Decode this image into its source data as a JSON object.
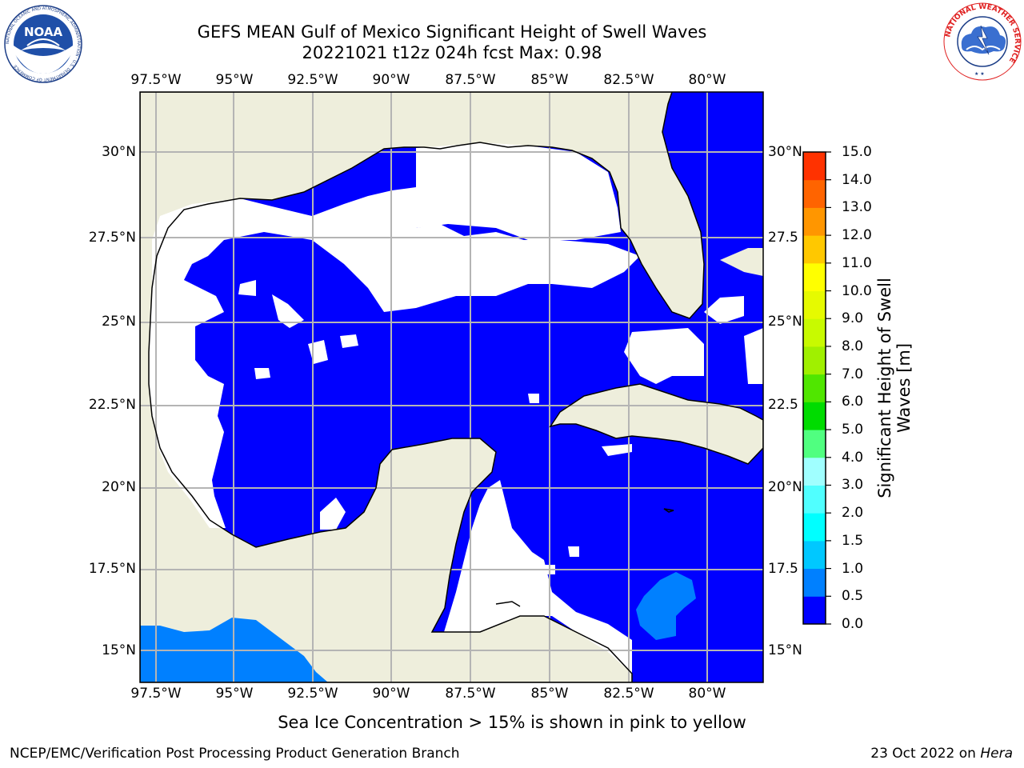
{
  "title": {
    "line1": "GEFS MEAN Gulf of Mexico Significant Height of Swell Waves",
    "line2": "20221021 t12z 024h fcst   Max: 0.98"
  },
  "map": {
    "lon_labels": [
      "97.5°W",
      "95°W",
      "92.5°W",
      "90°W",
      "87.5°W",
      "85°W",
      "82.5°W",
      "80°W"
    ],
    "lat_labels": [
      "30°N",
      "27.5°N",
      "25°N",
      "22.5°N",
      "20°N",
      "17.5°N",
      "15°N"
    ],
    "lat_labels_right": [
      "30°N",
      "27.5",
      "25°N",
      "22.5",
      "20°N",
      "17.5",
      "15°N"
    ],
    "extent": {
      "lon": [
        -98,
        -79
      ],
      "lat": [
        14,
        32
      ]
    },
    "colors": {
      "land": "#eeeedc",
      "no_data": "#ffffff",
      "swell_0_0.5": "#0000ff",
      "swell_0.5_1.0": "#0080ff",
      "grid": "#b4b4b4",
      "coast": "#000000"
    }
  },
  "colorbar": {
    "label_line1": "Significant Height of Swell",
    "label_line2": "Waves [m]",
    "ticks": [
      "0.0",
      "0.5",
      "1.0",
      "1.5",
      "2.0",
      "3.0",
      "4.0",
      "5.0",
      "6.0",
      "7.0",
      "8.0",
      "9.0",
      "10.0",
      "11.0",
      "12.0",
      "13.0",
      "14.0",
      "15.0"
    ],
    "colors": [
      "#0000ff",
      "#0080ff",
      "#00c8ff",
      "#00ffff",
      "#50ffff",
      "#a0ffff",
      "#50ff80",
      "#00dc00",
      "#50e600",
      "#a0f000",
      "#c8fa00",
      "#e6fa00",
      "#ffff00",
      "#ffc800",
      "#ff9600",
      "#ff6400",
      "#ff3200",
      "#ff0000"
    ]
  },
  "footer": {
    "note": "Sea Ice Concentration > 15% is shown in pink to yellow",
    "credit_left": "NCEP/EMC/Verification Post Processing Product Generation Branch",
    "credit_right_date": "23 Oct 2022 on",
    "credit_right_host": "Hera"
  },
  "logos": {
    "noaa_text": "NOAA",
    "noaa_ring_text": "NATIONAL OCEANIC AND ATMOSPHERIC ADMINISTRATION · U.S. DEPARTMENT OF COMMERCE",
    "nws_ring_text": "NATIONAL WEATHER SERVICE"
  }
}
